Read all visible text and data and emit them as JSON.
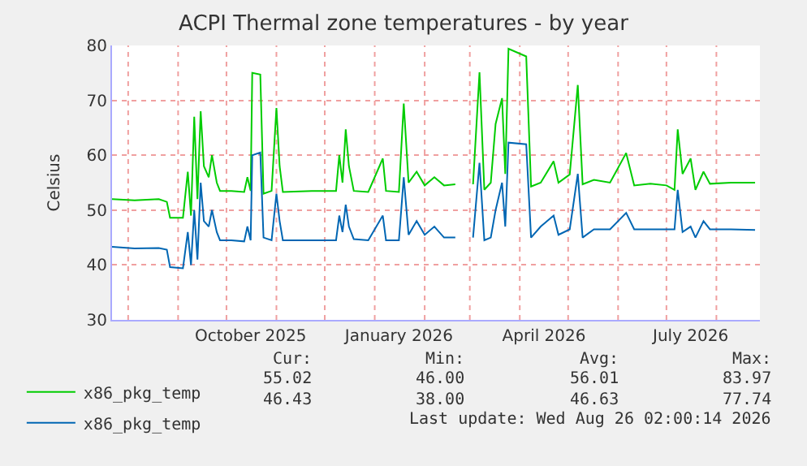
{
  "chart_data": {
    "type": "line",
    "title": "ACPI Thermal zone temperatures - by year",
    "ylabel": "Celsius",
    "x": [
      "2025-07-22",
      "2025-08-05",
      "2025-08-20",
      "2025-08-25",
      "2025-08-27",
      "2025-09-04",
      "2025-09-07",
      "2025-09-09",
      "2025-09-11",
      "2025-09-13",
      "2025-09-15",
      "2025-09-17",
      "2025-09-20",
      "2025-09-22",
      "2025-09-25",
      "2025-09-27",
      "2025-10-04",
      "2025-10-12",
      "2025-10-14",
      "2025-10-16",
      "2025-10-17",
      "2025-10-22",
      "2025-10-24",
      "2025-10-29",
      "2025-11-01",
      "2025-11-03",
      "2025-11-05",
      "2025-11-23",
      "2025-12-08",
      "2025-12-10",
      "2025-12-12",
      "2025-12-14",
      "2025-12-16",
      "2025-12-19",
      "2025-12-28",
      "2026-01-06",
      "2026-01-08",
      "2026-01-16",
      "2026-01-19",
      "2026-01-22",
      "2026-01-27",
      "2026-02-01",
      "2026-02-07",
      "2026-02-13",
      "2026-02-20",
      "2026-02-26",
      "2026-03-03",
      "2026-03-07",
      "2026-03-10",
      "2026-03-14",
      "2026-03-17",
      "2026-03-21",
      "2026-03-23",
      "2026-03-25",
      "2026-04-05",
      "2026-04-08",
      "2026-04-14",
      "2026-04-22",
      "2026-04-25",
      "2026-05-02",
      "2026-05-07",
      "2026-05-10",
      "2026-05-17",
      "2026-05-27",
      "2026-06-06",
      "2026-06-11",
      "2026-06-21",
      "2026-07-01",
      "2026-07-06",
      "2026-07-08",
      "2026-07-11",
      "2026-07-16",
      "2026-07-19",
      "2026-07-24",
      "2026-07-28",
      "2026-08-10",
      "2026-08-25"
    ],
    "series": [
      {
        "name": "x86_pkg_temp",
        "color": "#00cc00",
        "values": [
          52.0,
          51.8,
          52.0,
          51.5,
          48.6,
          48.6,
          57,
          49,
          67,
          52,
          68,
          58,
          56,
          60,
          55,
          53.5,
          53.5,
          53.3,
          56,
          53.5,
          75,
          74.7,
          53,
          53.5,
          68.6,
          58,
          53.3,
          53.5,
          53.5,
          60,
          55,
          64.7,
          58,
          53.5,
          53.3,
          59.4,
          53.5,
          53.3,
          69.4,
          55,
          57,
          54.5,
          56,
          54.5,
          54.7,
          null,
          54.7,
          75.1,
          53.7,
          55,
          65.7,
          70.4,
          56.6,
          79.4,
          78,
          54.3,
          55,
          58.9,
          55,
          56.5,
          72.8,
          54.7,
          55.5,
          55,
          60.4,
          54.5,
          54.8,
          54.5,
          53.7,
          64.7,
          56.6,
          59.4,
          53.7,
          57,
          54.8,
          55,
          55
        ]
      },
      {
        "name": "x86_pkg_temp",
        "color": "#0066b3",
        "values": [
          43.3,
          43.0,
          43.1,
          42.8,
          39.6,
          39.4,
          46,
          40,
          50,
          41,
          55,
          48,
          47,
          50,
          46,
          44.5,
          44.5,
          44.3,
          47,
          44.5,
          60,
          60.5,
          45,
          44.5,
          53,
          48,
          44.5,
          44.5,
          44.5,
          49,
          46,
          51,
          47,
          44.7,
          44.5,
          49,
          44.5,
          44.5,
          56,
          45.5,
          48,
          45.5,
          47,
          45,
          45,
          null,
          45,
          58.6,
          44.5,
          45,
          50,
          55,
          47,
          62.3,
          62,
          45,
          47,
          49,
          45.5,
          46.5,
          56.6,
          45,
          46.5,
          46.5,
          49.5,
          46.5,
          46.5,
          46.5,
          46.5,
          53.7,
          46,
          47,
          45,
          48,
          46.5,
          46.5,
          46.4
        ]
      }
    ],
    "xlim": [
      "2025-07-22",
      "2026-08-28"
    ],
    "xticks": [
      {
        "value": "2025-08-01",
        "label": null
      },
      {
        "value": "2025-09-01",
        "label": null
      },
      {
        "value": "2025-10-01",
        "label": null
      },
      {
        "value": "2025-10-16",
        "label": "October 2025"
      },
      {
        "value": "2025-11-01",
        "label": null
      },
      {
        "value": "2025-12-01",
        "label": null
      },
      {
        "value": "2026-01-01",
        "label": null
      },
      {
        "value": "2026-01-16",
        "label": "January 2026"
      },
      {
        "value": "2026-02-01",
        "label": null
      },
      {
        "value": "2026-03-01",
        "label": null
      },
      {
        "value": "2026-04-01",
        "label": null
      },
      {
        "value": "2026-04-16",
        "label": "April 2026"
      },
      {
        "value": "2026-05-01",
        "label": null
      },
      {
        "value": "2026-06-01",
        "label": null
      },
      {
        "value": "2026-07-01",
        "label": null
      },
      {
        "value": "2026-07-16",
        "label": "July 2026"
      },
      {
        "value": "2026-08-01",
        "label": null
      }
    ],
    "ylim": [
      30,
      80
    ],
    "yticks": [
      30,
      40,
      50,
      60,
      70,
      80
    ],
    "grid": true,
    "legend": "bottom left",
    "annotations": [
      "Cur:",
      "Min:",
      "Avg:",
      "Max:",
      "55.02",
      "46.00",
      "56.01",
      "83.97",
      "46.43",
      "38.00",
      "46.63",
      "77.74",
      "Last update: Wed Aug 26 02:00:14 2026"
    ]
  }
}
